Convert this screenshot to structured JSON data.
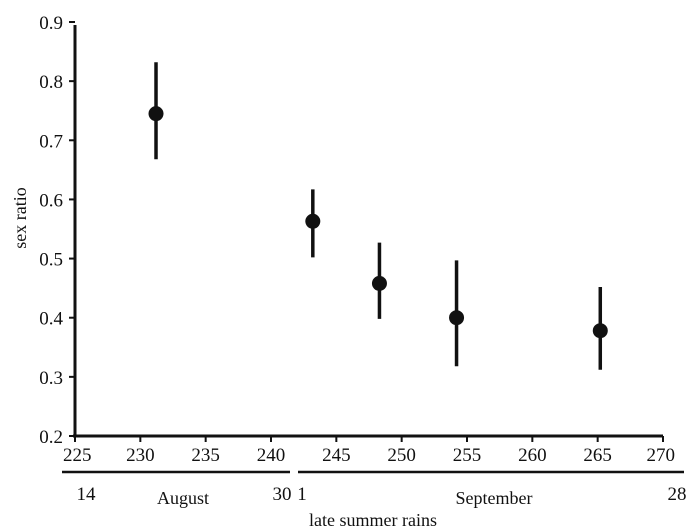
{
  "chart_data": {
    "type": "scatter",
    "xlabel": "",
    "ylabel": "sex ratio",
    "xlim": [
      225,
      270
    ],
    "ylim": [
      0.2,
      0.9
    ],
    "xticks": [
      225,
      230,
      235,
      240,
      245,
      250,
      255,
      260,
      265,
      270
    ],
    "yticks": [
      0.2,
      0.3,
      0.4,
      0.5,
      0.6,
      0.7,
      0.8,
      0.9
    ],
    "grid": false,
    "series": [
      {
        "points": [
          {
            "x": 231.2,
            "y": 0.745,
            "ylow": 0.668,
            "yhigh": 0.832
          },
          {
            "x": 243.2,
            "y": 0.563,
            "ylow": 0.502,
            "yhigh": 0.617
          },
          {
            "x": 248.3,
            "y": 0.458,
            "ylow": 0.398,
            "yhigh": 0.527
          },
          {
            "x": 254.2,
            "y": 0.4,
            "ylow": 0.318,
            "yhigh": 0.497
          },
          {
            "x": 265.2,
            "y": 0.378,
            "ylow": 0.312,
            "yhigh": 0.452
          }
        ]
      }
    ],
    "month_bar": {
      "august": {
        "label": "August",
        "start_day": "14",
        "end_day": "30"
      },
      "september": {
        "label": "September",
        "start_day": "1",
        "end_day": "28"
      }
    },
    "annotation": "late summer rains"
  }
}
